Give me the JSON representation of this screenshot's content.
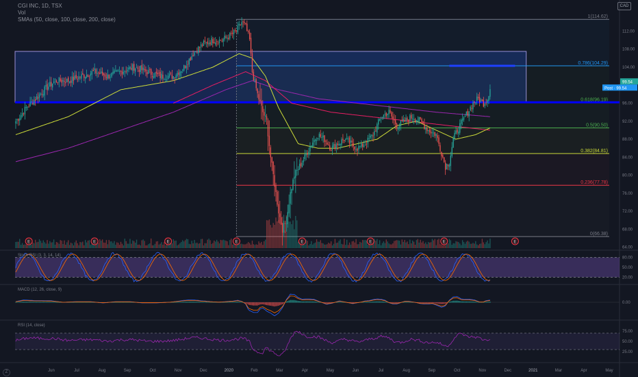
{
  "legend": {
    "symbol": "CGI INC, 1D, TSX",
    "volume": "Vol",
    "smas": "SMAs (50, close, 100, close, 200, close)"
  },
  "currency": "CAD",
  "zoom_label": "Z",
  "price_axis": {
    "ticks": [
      "112.00",
      "108.00",
      "104.00",
      "100.00",
      "96.00",
      "92.00",
      "88.00",
      "84.00",
      "80.00",
      "76.00",
      "72.00",
      "68.00",
      "64.00"
    ],
    "last_price": "99.54",
    "post_label": "Post",
    "post_price": "99.54",
    "stoch_ticks": [
      "80.00",
      "50.00",
      "20.00"
    ],
    "macd_ticks": [
      "0.00"
    ],
    "rsi_ticks": [
      "75.00",
      "50.00",
      "25.00"
    ]
  },
  "time_axis": [
    "Jun",
    "Jul",
    "Aug",
    "Sep",
    "Oct",
    "Nov",
    "Dec",
    "2020",
    "Feb",
    "Mar",
    "Apr",
    "May",
    "Jun",
    "Jul",
    "Aug",
    "Sep",
    "Oct",
    "Nov",
    "Dec",
    "2021",
    "Mar",
    "Apr",
    "May"
  ],
  "fib_levels": [
    {
      "label": "1(114.62)",
      "value": 114.62,
      "color": "#787b86"
    },
    {
      "label": "0.786(104.29)",
      "value": 104.29,
      "color": "#2196f3"
    },
    {
      "label": "0.618(96.19)",
      "value": 96.19,
      "color": "#4caf50"
    },
    {
      "label": "0.5(90.50)",
      "value": 90.5,
      "color": "#4caf50"
    },
    {
      "label": "0.382(84.81)",
      "value": 84.81,
      "color": "#cddc39"
    },
    {
      "label": "0.236(77.78)",
      "value": 77.78,
      "color": "#f23645"
    },
    {
      "label": "0(66.38)",
      "value": 66.38,
      "color": "#787b86"
    }
  ],
  "earnings_marker": "E",
  "indicator_labels": {
    "stoch": "Stoch RSI (3, 3, 14, 14)",
    "macd": "MACD (12, 26, close, 9)",
    "rsi": "RSI (14, close)"
  },
  "colors": {
    "background": "#131722",
    "up": "#26a69a",
    "down": "#ef5350",
    "sma50": "#cddc39",
    "sma100": "#e91e63",
    "sma200": "#9c27b0",
    "rectangle": "#2962ff",
    "hline": "#0000ff"
  },
  "chart_data": {
    "type": "candlestick",
    "price_anchors": [
      [
        0,
        92
      ],
      [
        3,
        93
      ],
      [
        8,
        95
      ],
      [
        15,
        97
      ],
      [
        22,
        99
      ],
      [
        30,
        101
      ],
      [
        40,
        101
      ],
      [
        50,
        102
      ],
      [
        60,
        103
      ],
      [
        70,
        102
      ],
      [
        80,
        103
      ],
      [
        90,
        104
      ],
      [
        100,
        103
      ],
      [
        110,
        102
      ],
      [
        120,
        102
      ],
      [
        128,
        104
      ],
      [
        135,
        107
      ],
      [
        142,
        109
      ],
      [
        150,
        110
      ],
      [
        157,
        110
      ],
      [
        163,
        111
      ],
      [
        168,
        112
      ],
      [
        172,
        114
      ],
      [
        175,
        113
      ],
      [
        178,
        110
      ],
      [
        180,
        103
      ],
      [
        184,
        98
      ],
      [
        188,
        94
      ],
      [
        191,
        92
      ],
      [
        194,
        84
      ],
      [
        197,
        78
      ],
      [
        200,
        72
      ],
      [
        203,
        68
      ],
      [
        206,
        70
      ],
      [
        209,
        76
      ],
      [
        212,
        80
      ],
      [
        216,
        82
      ],
      [
        220,
        84
      ],
      [
        225,
        87
      ],
      [
        230,
        89
      ],
      [
        235,
        88
      ],
      [
        240,
        86
      ],
      [
        245,
        87
      ],
      [
        250,
        88
      ],
      [
        255,
        87
      ],
      [
        260,
        86
      ],
      [
        266,
        87
      ],
      [
        272,
        89
      ],
      [
        278,
        93
      ],
      [
        284,
        94
      ],
      [
        290,
        91
      ],
      [
        296,
        92
      ],
      [
        302,
        93
      ],
      [
        308,
        92
      ],
      [
        314,
        90
      ],
      [
        320,
        89
      ],
      [
        324,
        85
      ],
      [
        327,
        82
      ],
      [
        330,
        83
      ],
      [
        333,
        88
      ],
      [
        336,
        90
      ],
      [
        340,
        92
      ],
      [
        344,
        94
      ],
      [
        348,
        96
      ],
      [
        352,
        97
      ],
      [
        356,
        96
      ],
      [
        359,
        97
      ],
      [
        361,
        99.5
      ]
    ],
    "sma50_anchors": [
      [
        0,
        89
      ],
      [
        40,
        93
      ],
      [
        80,
        99
      ],
      [
        120,
        101
      ],
      [
        150,
        104
      ],
      [
        170,
        107
      ],
      [
        180,
        106
      ],
      [
        190,
        102
      ],
      [
        200,
        95
      ],
      [
        215,
        87
      ],
      [
        230,
        86
      ],
      [
        245,
        86
      ],
      [
        260,
        87
      ],
      [
        275,
        88
      ],
      [
        290,
        91
      ],
      [
        305,
        92
      ],
      [
        320,
        90
      ],
      [
        335,
        88
      ],
      [
        350,
        89
      ],
      [
        361,
        90.5
      ]
    ],
    "sma100_anchors": [
      [
        120,
        96
      ],
      [
        150,
        100
      ],
      [
        175,
        103
      ],
      [
        190,
        101
      ],
      [
        210,
        96
      ],
      [
        240,
        94
      ],
      [
        270,
        93
      ],
      [
        300,
        92
      ],
      [
        330,
        91
      ],
      [
        361,
        90
      ]
    ],
    "sma200_anchors": [
      [
        0,
        83
      ],
      [
        40,
        86
      ],
      [
        80,
        90
      ],
      [
        120,
        94
      ],
      [
        160,
        99
      ],
      [
        180,
        101
      ],
      [
        200,
        99
      ],
      [
        230,
        97
      ],
      [
        260,
        96
      ],
      [
        290,
        95
      ],
      [
        320,
        94
      ],
      [
        361,
        93
      ]
    ],
    "earnings_index": [
      10,
      60,
      116,
      168,
      218,
      270,
      326,
      380
    ],
    "hline_value": 96.2,
    "rectangle": {
      "start_index": 0,
      "end_index": 389,
      "top": 107.5,
      "bottom": 96.2
    },
    "short_line": {
      "start_index": 330,
      "end_index": 380,
      "value": 104.29
    },
    "fib_start_index": 168,
    "y_range": [
      63.5,
      118
    ],
    "total_slots": 460,
    "stoch_range": [
      0,
      100
    ],
    "rsi_range": [
      0,
      100
    ]
  }
}
